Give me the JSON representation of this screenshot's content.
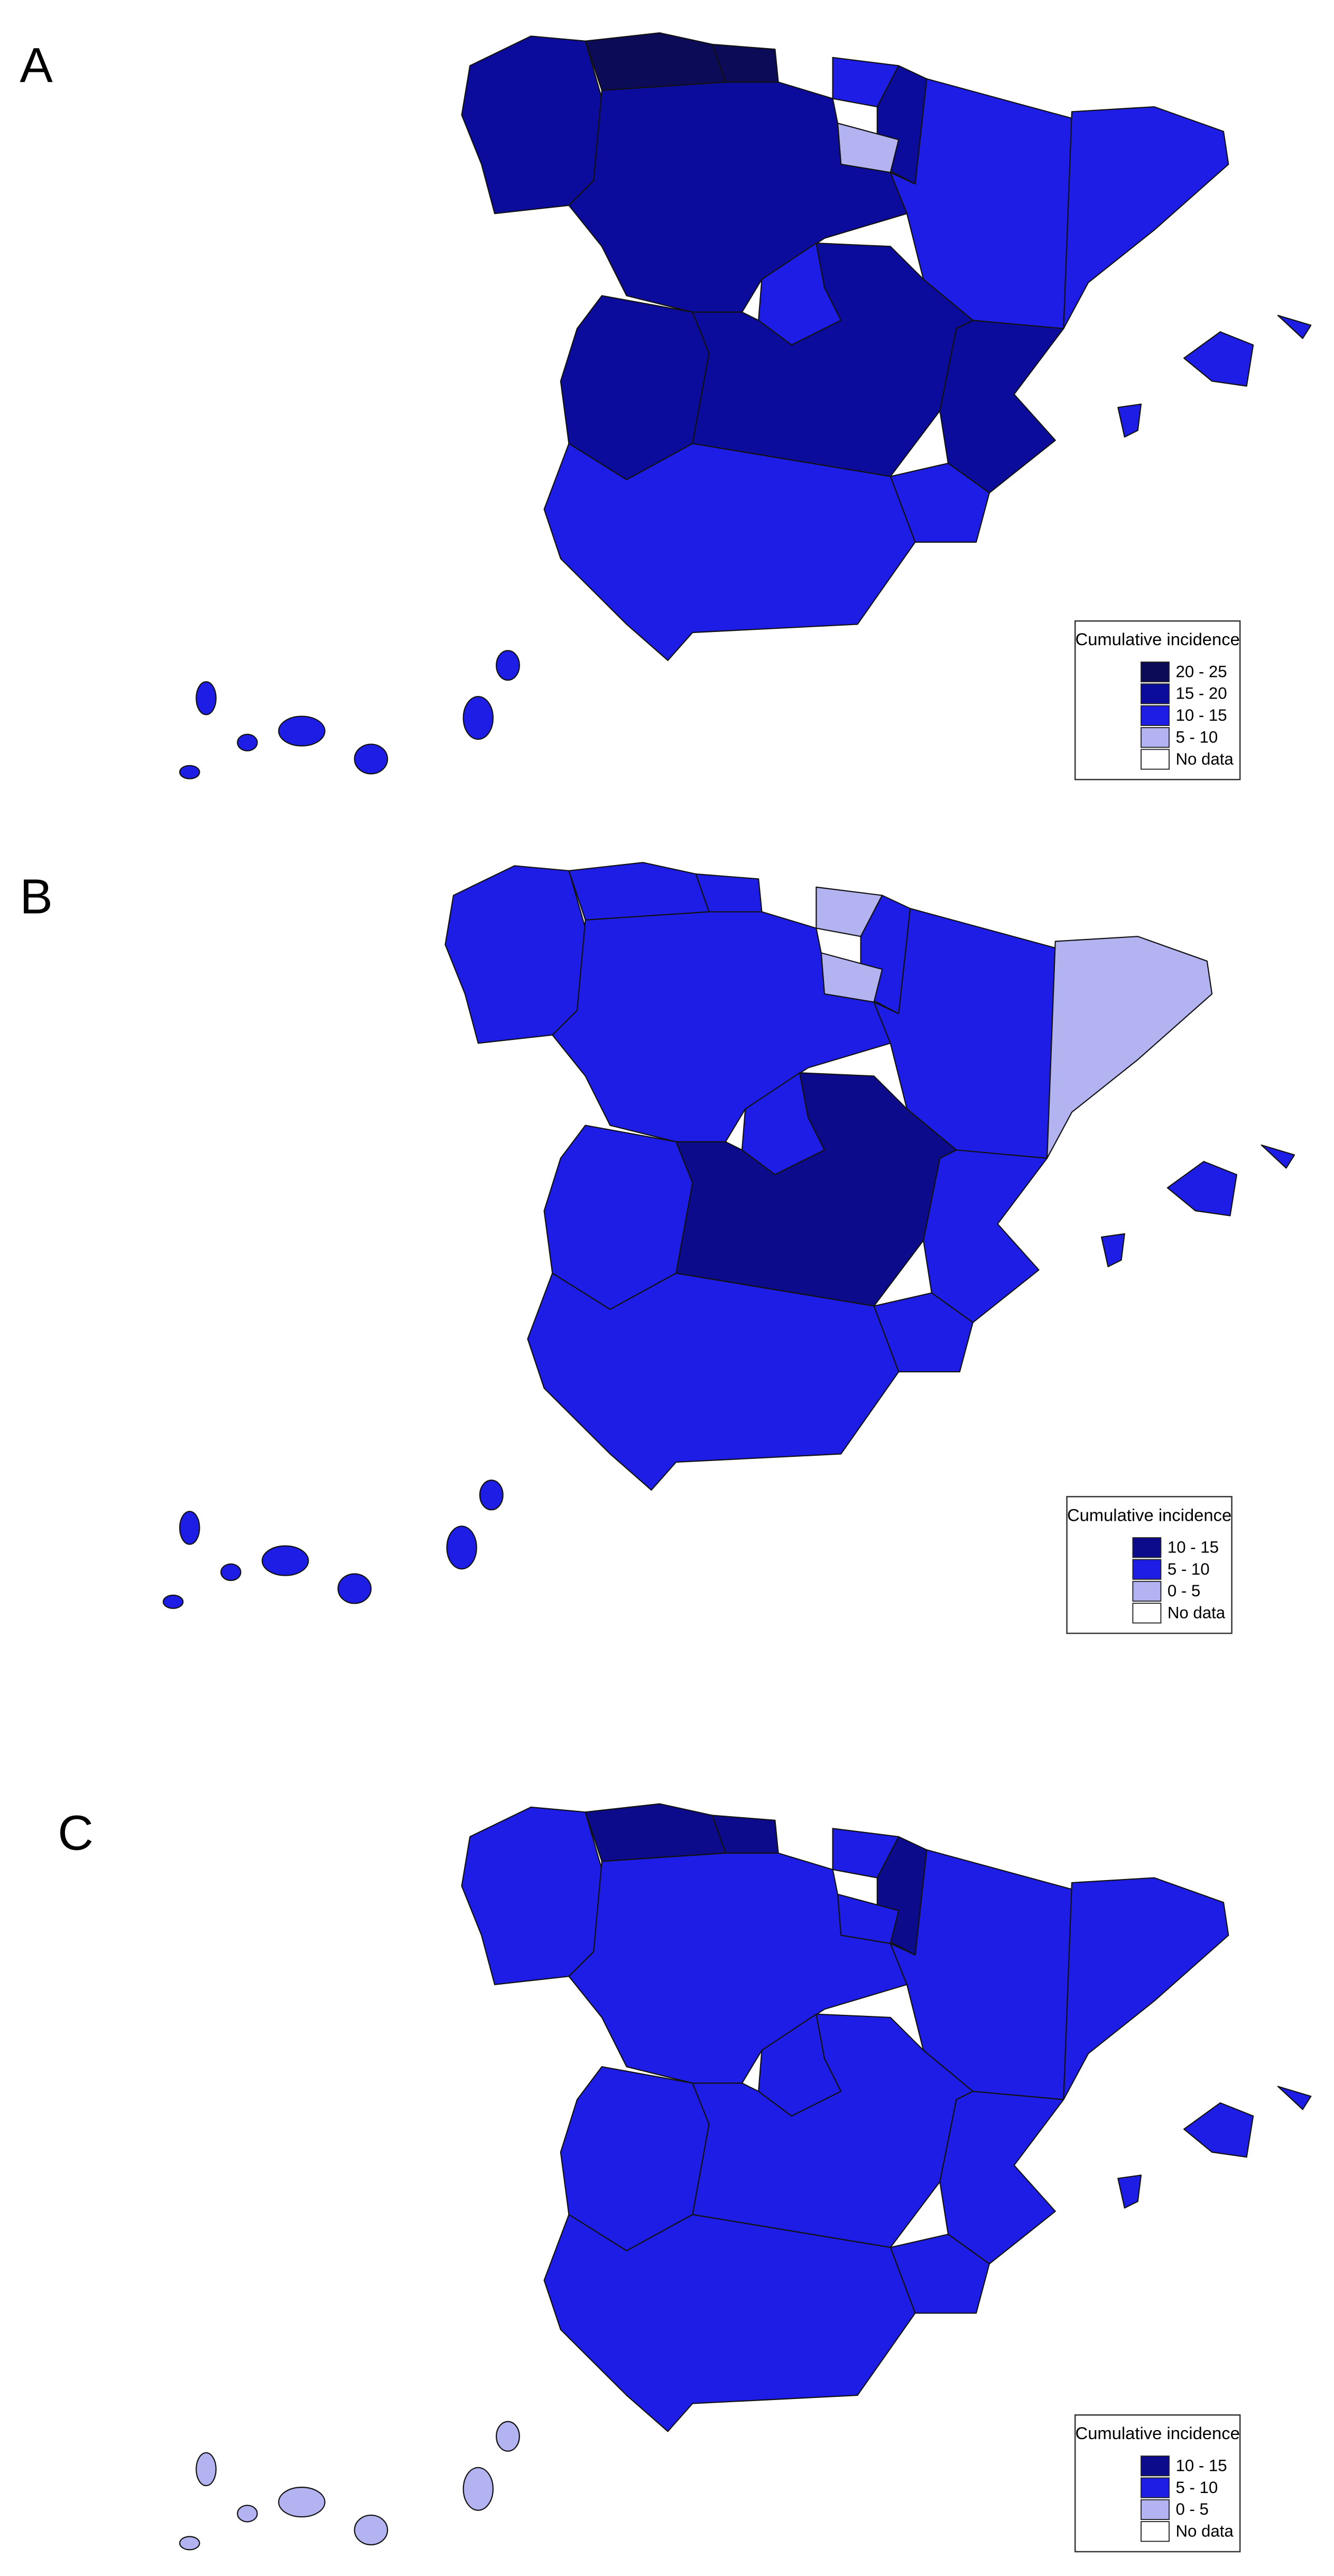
{
  "panels": [
    {
      "label": "A",
      "legend": {
        "title": "Cumulative incidence",
        "entries": [
          {
            "label": "20 - 25",
            "color": "#0b0b58"
          },
          {
            "label": "15 - 20",
            "color": "#0c0c9c"
          },
          {
            "label": "10 - 15",
            "color": "#1d1de6"
          },
          {
            "label": "5 - 10",
            "color": "#b3b3f2"
          },
          {
            "label": "No data",
            "color": "#ffffff"
          }
        ]
      }
    },
    {
      "label": "B",
      "legend": {
        "title": "Cumulative incidence",
        "entries": [
          {
            "label": "10 - 15",
            "color": "#0b0b8c"
          },
          {
            "label": "5 - 10",
            "color": "#1d1de6"
          },
          {
            "label": "0 - 5",
            "color": "#b3b3f2"
          },
          {
            "label": "No data",
            "color": "#ffffff"
          }
        ]
      }
    },
    {
      "label": "C",
      "legend": {
        "title": "Cumulative incidence",
        "entries": [
          {
            "label": "10 - 15",
            "color": "#0b0b8c"
          },
          {
            "label": "5 - 10",
            "color": "#1d1de6"
          },
          {
            "label": "0 - 5",
            "color": "#b3b3f2"
          },
          {
            "label": "No data",
            "color": "#ffffff"
          }
        ]
      }
    }
  ]
}
